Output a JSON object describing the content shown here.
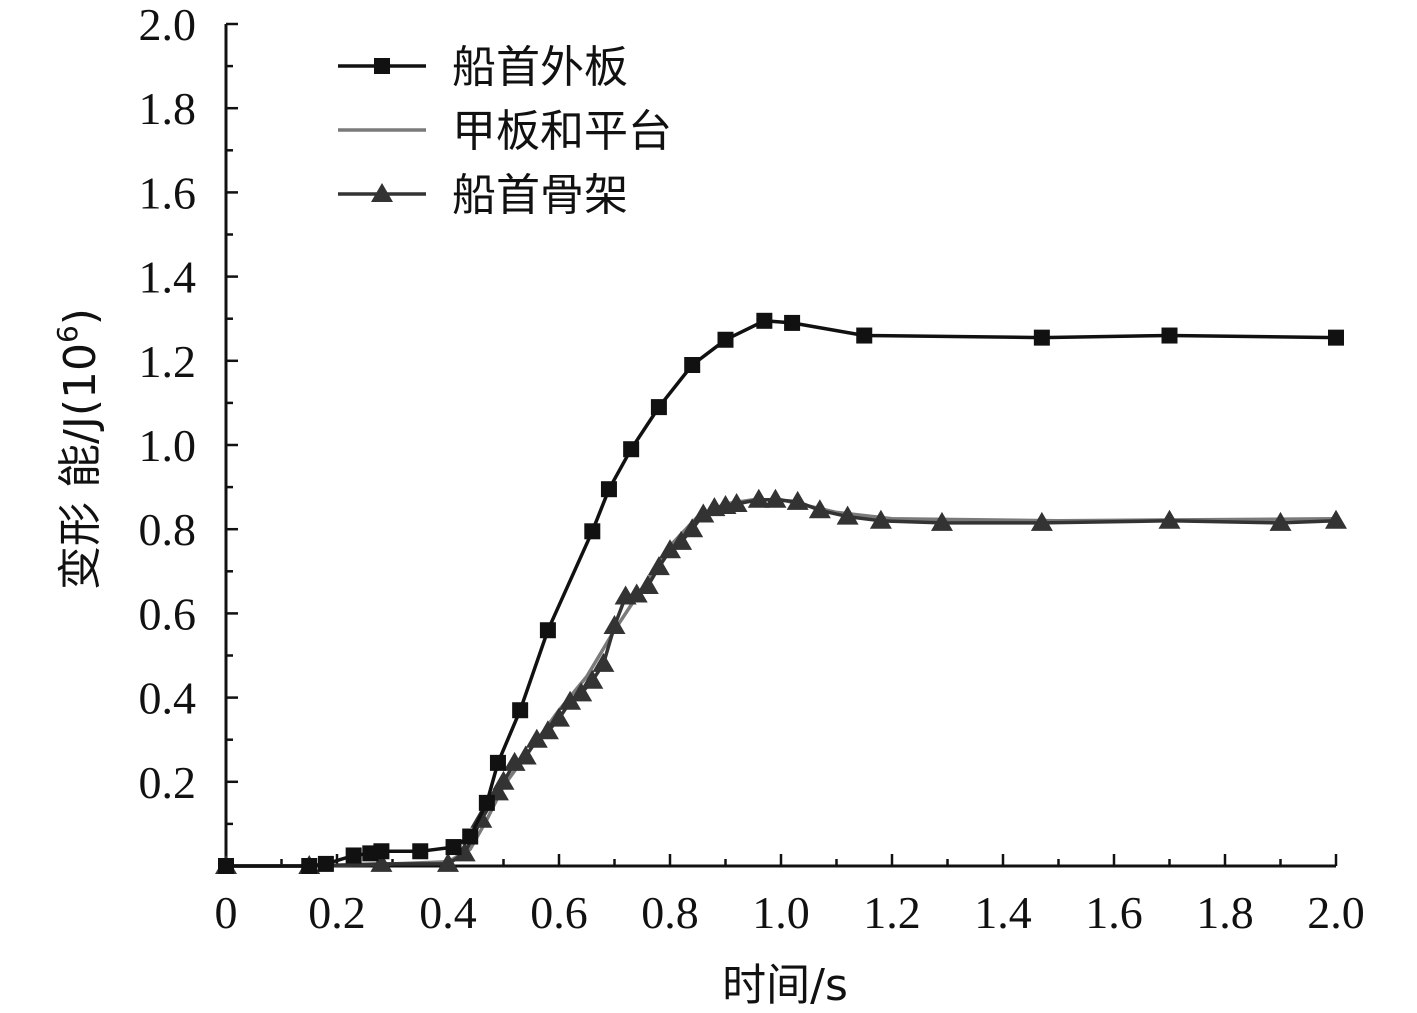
{
  "chart_data": {
    "type": "line",
    "title": "",
    "xlabel": "时间/s",
    "ylabel": "变形能/J(10⁶)",
    "ylabel_parts": {
      "main": "变形 能/J(10",
      "sup": "6",
      "close": ")"
    },
    "xlim": [
      0,
      2.0
    ],
    "ylim": [
      0,
      2.0
    ],
    "x_ticks": [
      "0",
      "0.2",
      "0.4",
      "0.6",
      "0.8",
      "1.0",
      "1.2",
      "1.4",
      "1.6",
      "1.8",
      "2.0"
    ],
    "y_ticks": [
      "0.2",
      "0.4",
      "0.6",
      "0.8",
      "1.0",
      "1.2",
      "1.4",
      "1.6",
      "1.8",
      "2.0"
    ],
    "grid": false,
    "legend_position": "top-left",
    "series": [
      {
        "name": "船首外板",
        "color": "#111111",
        "marker": "square",
        "x": [
          0,
          0.15,
          0.18,
          0.23,
          0.26,
          0.28,
          0.35,
          0.41,
          0.44,
          0.47,
          0.49,
          0.53,
          0.58,
          0.66,
          0.69,
          0.73,
          0.78,
          0.84,
          0.9,
          0.97,
          1.02,
          1.15,
          1.47,
          1.7,
          2.0
        ],
        "y": [
          0,
          0,
          0.005,
          0.025,
          0.03,
          0.035,
          0.035,
          0.045,
          0.07,
          0.15,
          0.245,
          0.37,
          0.56,
          0.795,
          0.895,
          0.99,
          1.09,
          1.19,
          1.25,
          1.295,
          1.29,
          1.26,
          1.255,
          1.26,
          1.255
        ]
      },
      {
        "name": "甲板和平台",
        "color": "#7a7a7a",
        "marker": "none",
        "x": [
          0,
          0.15,
          0.3,
          0.4,
          0.44,
          0.47,
          0.5,
          0.55,
          0.6,
          0.65,
          0.7,
          0.75,
          0.8,
          0.85,
          0.9,
          0.95,
          1.0,
          1.1,
          1.2,
          1.5,
          2.0
        ],
        "y": [
          0,
          0,
          0.005,
          0.01,
          0.04,
          0.11,
          0.19,
          0.28,
          0.37,
          0.45,
          0.56,
          0.66,
          0.76,
          0.83,
          0.86,
          0.87,
          0.87,
          0.84,
          0.825,
          0.82,
          0.825
        ]
      },
      {
        "name": "船首骨架",
        "color": "#333333",
        "marker": "triangle",
        "x": [
          0,
          0.15,
          0.28,
          0.4,
          0.43,
          0.46,
          0.49,
          0.5,
          0.52,
          0.54,
          0.56,
          0.58,
          0.6,
          0.62,
          0.64,
          0.66,
          0.68,
          0.7,
          0.72,
          0.74,
          0.76,
          0.78,
          0.8,
          0.82,
          0.84,
          0.86,
          0.88,
          0.9,
          0.92,
          0.96,
          0.99,
          1.03,
          1.07,
          1.12,
          1.18,
          1.29,
          1.47,
          1.7,
          1.9,
          2.0
        ],
        "y": [
          0,
          0,
          0.005,
          0.005,
          0.03,
          0.11,
          0.175,
          0.2,
          0.245,
          0.26,
          0.3,
          0.32,
          0.35,
          0.39,
          0.41,
          0.44,
          0.48,
          0.57,
          0.64,
          0.645,
          0.665,
          0.71,
          0.75,
          0.77,
          0.8,
          0.835,
          0.85,
          0.855,
          0.86,
          0.87,
          0.87,
          0.865,
          0.845,
          0.83,
          0.82,
          0.815,
          0.815,
          0.82,
          0.815,
          0.82
        ]
      }
    ]
  }
}
